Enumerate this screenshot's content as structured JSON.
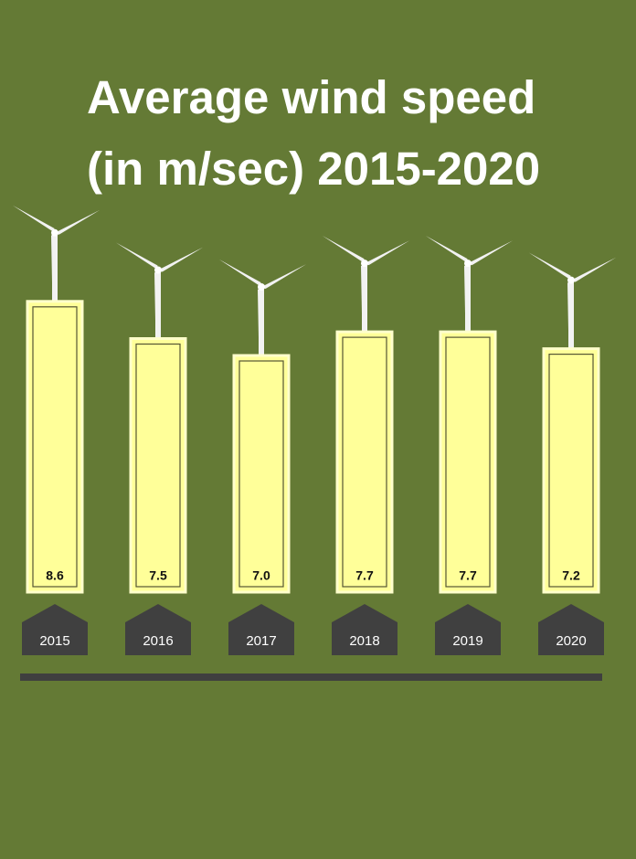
{
  "chart_data": {
    "type": "bar",
    "title": "Average wind speed (in m/sec) 2015-2020",
    "categories": [
      "2015",
      "2016",
      "2017",
      "2018",
      "2019",
      "2020"
    ],
    "values": [
      8.6,
      7.5,
      7.0,
      7.7,
      7.7,
      7.2
    ],
    "value_labels": [
      "8.6",
      "7.5",
      "7.0",
      "7.7",
      "7.7",
      "7.2"
    ],
    "color": "#ffff99"
  }
}
